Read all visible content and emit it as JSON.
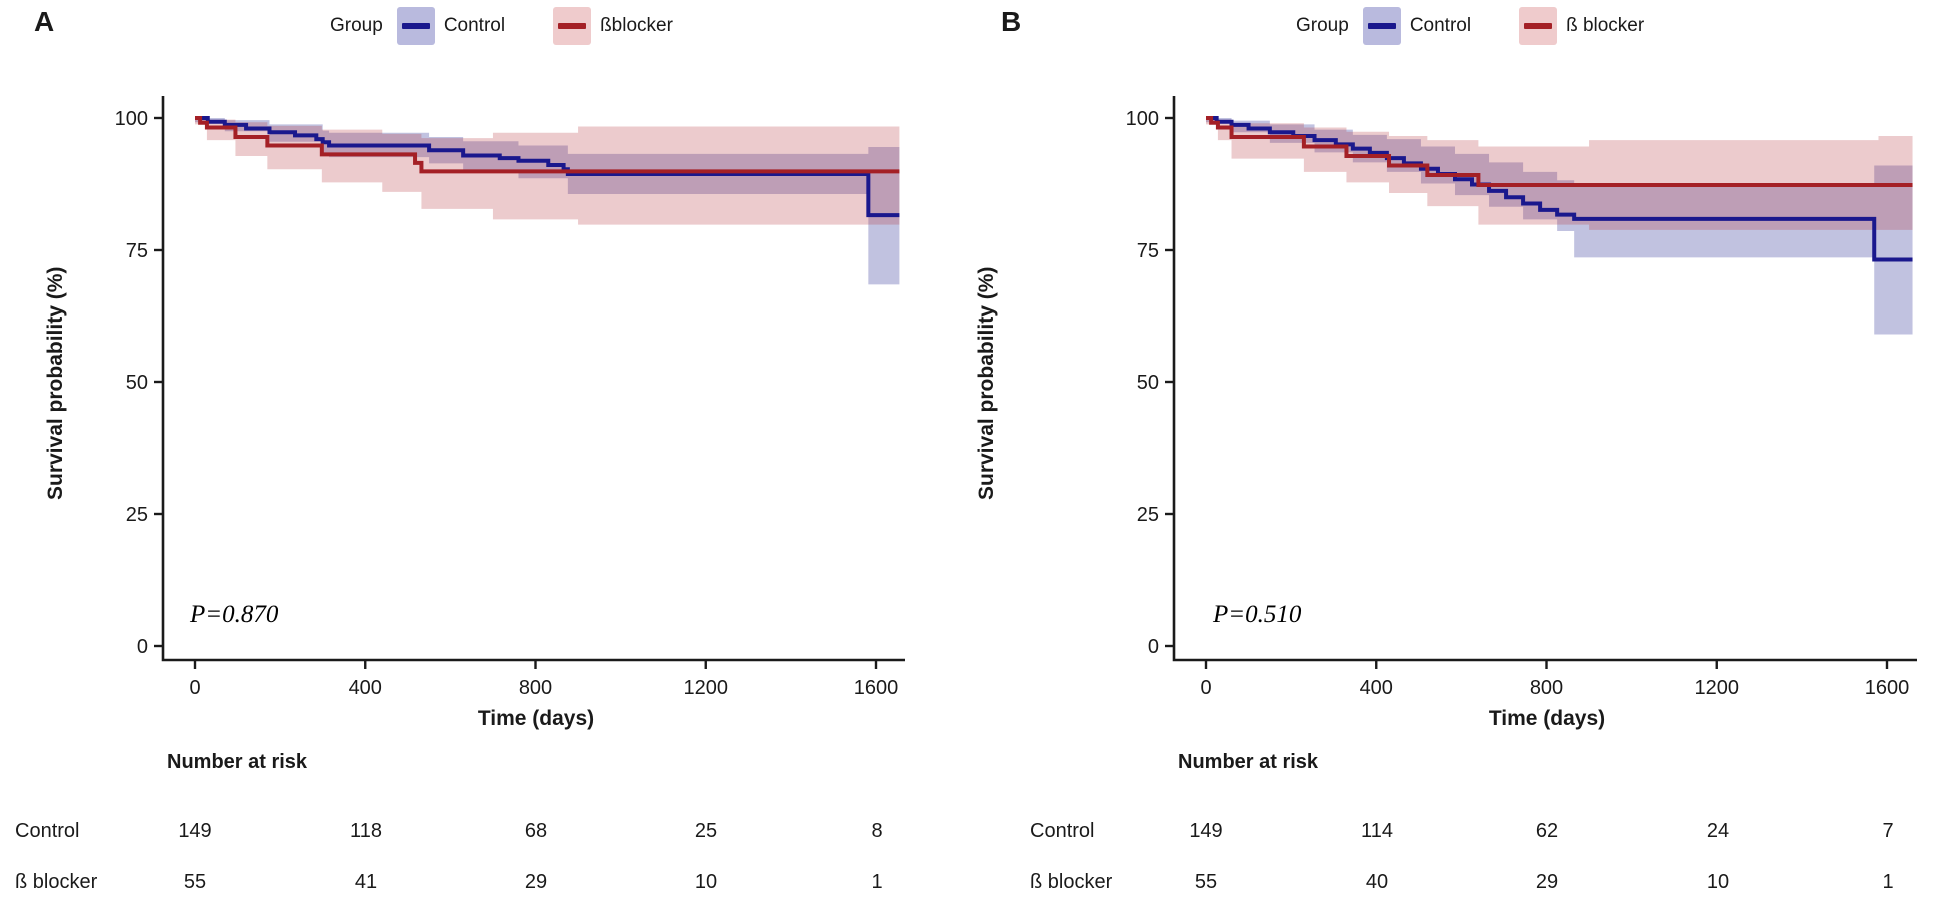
{
  "figure_background": "#ffffff",
  "axis_color": "#1a1a1a",
  "chart_data": [
    {
      "type": "line",
      "subtype": "kaplan-meier-step",
      "panel_label": "A",
      "legend_title": "Group",
      "legend_position": "top",
      "xlabel": "Time (days)",
      "ylabel": "Survival probability (%)",
      "p_value_text": "P=0.870",
      "xlim": [
        -75,
        1700
      ],
      "ylim": [
        -2.5,
        103.5
      ],
      "xticks": [
        0,
        400,
        800,
        1200,
        1600
      ],
      "yticks": [
        0,
        25,
        50,
        75,
        100
      ],
      "grid": false,
      "series": [
        {
          "name": "Control",
          "line_color": "#1a188d",
          "band_fill": "rgba(62,64,160,0.32)",
          "legend_fill": "#b9bade",
          "steps": [
            [
              0,
              100
            ],
            [
              30,
              99.3
            ],
            [
              70,
              98.7
            ],
            [
              120,
              98.0
            ],
            [
              175,
              97.3
            ],
            [
              235,
              96.7
            ],
            [
              285,
              96.0
            ],
            [
              300,
              95.4
            ],
            [
              315,
              94.8
            ],
            [
              550,
              93.9
            ],
            [
              630,
              92.9
            ],
            [
              716,
              92.4
            ],
            [
              760,
              91.9
            ],
            [
              830,
              91.1
            ],
            [
              866,
              90.3
            ],
            [
              876,
              89.4
            ],
            [
              1582,
              89.4
            ],
            [
              1582,
              81.6
            ],
            [
              1655,
              81.6
            ]
          ],
          "ci": [
            [
              0,
              99.2,
              100
            ],
            [
              70,
              97.5,
              99.6
            ],
            [
              175,
              95.5,
              98.8
            ],
            [
              300,
              93.3,
              97.6
            ],
            [
              315,
              92.6,
              97.2
            ],
            [
              550,
              91.4,
              96.4
            ],
            [
              630,
              90.2,
              95.6
            ],
            [
              760,
              88.6,
              94.8
            ],
            [
              876,
              85.6,
              93.2
            ],
            [
              1582,
              85.6,
              93.2
            ],
            [
              1582,
              68.5,
              94.5
            ],
            [
              1655,
              68.5,
              94.5
            ]
          ]
        },
        {
          "name": "ßblocker",
          "line_color": "#a42026",
          "band_fill": "rgba(186,64,70,0.27)",
          "legend_fill": "#efcbcc",
          "steps": [
            [
              0,
              100
            ],
            [
              12,
              99.1
            ],
            [
              28,
              98.2
            ],
            [
              95,
              96.4
            ],
            [
              170,
              94.8
            ],
            [
              298,
              93.1
            ],
            [
              517,
              91.5
            ],
            [
              532,
              89.9
            ],
            [
              1655,
              89.9
            ]
          ],
          "ci": [
            [
              0,
              98.8,
              100
            ],
            [
              28,
              95.8,
              99.7
            ],
            [
              95,
              92.8,
              99.2
            ],
            [
              170,
              90.3,
              98.5
            ],
            [
              298,
              87.8,
              97.8
            ],
            [
              440,
              86.0,
              97.0
            ],
            [
              532,
              82.8,
              96.2
            ],
            [
              700,
              80.8,
              97.2
            ],
            [
              900,
              79.8,
              98.4
            ],
            [
              1655,
              79.8,
              98.4
            ]
          ]
        }
      ],
      "risk_table": {
        "title": "Number at risk",
        "time_points": [
          0,
          400,
          800,
          1200,
          1600
        ],
        "rows": [
          {
            "label": "Control",
            "values": [
              "149",
              "118",
              "68",
              "25",
              "8"
            ]
          },
          {
            "label": "ß blocker",
            "values": [
              "55",
              "41",
              "29",
              "10",
              "1"
            ]
          }
        ]
      }
    },
    {
      "type": "line",
      "subtype": "kaplan-meier-step",
      "panel_label": "B",
      "legend_title": "Group",
      "legend_position": "top",
      "xlabel": "Time (days)",
      "ylabel": "Survival probability (%)",
      "p_value_text": "P=0.510",
      "xlim": [
        -75,
        1700
      ],
      "ylim": [
        -2.5,
        103.5
      ],
      "xticks": [
        0,
        400,
        800,
        1200,
        1600
      ],
      "yticks": [
        0,
        25,
        50,
        75,
        100
      ],
      "grid": false,
      "series": [
        {
          "name": "Control",
          "line_color": "#1a188d",
          "band_fill": "rgba(62,64,160,0.32)",
          "legend_fill": "#b9bade",
          "steps": [
            [
              0,
              100
            ],
            [
              25,
              99.3
            ],
            [
              60,
              98.7
            ],
            [
              100,
              98.0
            ],
            [
              150,
              97.3
            ],
            [
              205,
              96.6
            ],
            [
              255,
              95.8
            ],
            [
              305,
              95.0
            ],
            [
              345,
              94.2
            ],
            [
              385,
              93.4
            ],
            [
              425,
              92.4
            ],
            [
              465,
              91.4
            ],
            [
              505,
              90.4
            ],
            [
              545,
              89.4
            ],
            [
              585,
              88.4
            ],
            [
              625,
              87.4
            ],
            [
              665,
              86.2
            ],
            [
              705,
              85.0
            ],
            [
              745,
              83.8
            ],
            [
              785,
              82.6
            ],
            [
              825,
              81.7
            ],
            [
              865,
              80.9
            ],
            [
              1570,
              80.9
            ],
            [
              1570,
              73.2
            ],
            [
              1660,
              73.2
            ]
          ],
          "ci": [
            [
              0,
              99.2,
              100
            ],
            [
              60,
              97.3,
              99.5
            ],
            [
              150,
              95.3,
              98.8
            ],
            [
              255,
              93.5,
              97.8
            ],
            [
              345,
              91.6,
              96.8
            ],
            [
              425,
              89.8,
              96.0
            ],
            [
              505,
              87.6,
              94.6
            ],
            [
              585,
              85.4,
              93.2
            ],
            [
              665,
              83.2,
              91.6
            ],
            [
              745,
              80.8,
              89.8
            ],
            [
              825,
              78.6,
              88.2
            ],
            [
              865,
              73.6,
              87.0
            ],
            [
              1570,
              73.6,
              87.0
            ],
            [
              1570,
              59.0,
              91.0
            ],
            [
              1660,
              59.0,
              91.0
            ]
          ]
        },
        {
          "name": "ß blocker",
          "line_color": "#a42026",
          "band_fill": "rgba(186,64,70,0.27)",
          "legend_fill": "#efcbcc",
          "steps": [
            [
              0,
              100
            ],
            [
              12,
              99.1
            ],
            [
              28,
              98.2
            ],
            [
              60,
              96.4
            ],
            [
              230,
              94.6
            ],
            [
              330,
              92.8
            ],
            [
              430,
              91.0
            ],
            [
              520,
              89.2
            ],
            [
              640,
              87.3
            ],
            [
              1660,
              87.3
            ]
          ],
          "ci": [
            [
              0,
              98.8,
              100
            ],
            [
              28,
              95.8,
              99.7
            ],
            [
              60,
              92.3,
              99.0
            ],
            [
              230,
              89.8,
              98.2
            ],
            [
              330,
              87.8,
              97.4
            ],
            [
              430,
              85.8,
              96.6
            ],
            [
              520,
              83.3,
              95.8
            ],
            [
              640,
              79.8,
              94.6
            ],
            [
              900,
              78.8,
              95.8
            ],
            [
              1580,
              78.8,
              96.6
            ],
            [
              1660,
              78.8,
              96.6
            ]
          ]
        }
      ],
      "risk_table": {
        "title": "Number at risk",
        "time_points": [
          0,
          400,
          800,
          1200,
          1600
        ],
        "rows": [
          {
            "label": "Control",
            "values": [
              "149",
              "114",
              "62",
              "24",
              "7"
            ]
          },
          {
            "label": "ß blocker",
            "values": [
              "55",
              "40",
              "29",
              "10",
              "1"
            ]
          }
        ]
      }
    }
  ]
}
